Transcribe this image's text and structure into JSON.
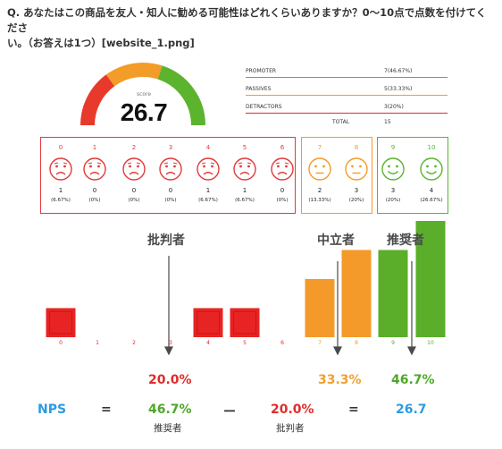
{
  "question": {
    "line1": "Q. あなたはこの商品を友人・知人に勧める可能性はどれくらいありますか？0〜10点で点数を付けてくださ",
    "line2": "い。（お答えは1つ）[website_1.png]"
  },
  "gauge": {
    "label": "score",
    "value": "26.7",
    "colors": {
      "red": "#e83a2c",
      "orange": "#f39c27",
      "green": "#5cb32e",
      "track": "#dddddd"
    }
  },
  "summary": {
    "rows": [
      {
        "label": "PROMOTER",
        "value": "7(46.67%)",
        "line_color": "#5cb32e"
      },
      {
        "label": "PASSIVES",
        "value": "5(33.33%)",
        "line_color": "#f39c27"
      },
      {
        "label": "DETRACTORS",
        "value": "3(20%)",
        "line_color": "#e02b2b"
      }
    ],
    "total_label": "TOTAL",
    "total_value": "15"
  },
  "scale": {
    "groups": [
      {
        "name": "detractor",
        "color": "#e23a3a"
      },
      {
        "name": "passive",
        "color": "#f39c27"
      },
      {
        "name": "promoter",
        "color": "#5cb32e"
      }
    ],
    "items": [
      {
        "n": "0",
        "count": "1",
        "pct": "(6.67%)",
        "group": 0
      },
      {
        "n": "1",
        "count": "0",
        "pct": "(0%)",
        "group": 0
      },
      {
        "n": "2",
        "count": "0",
        "pct": "(0%)",
        "group": 0
      },
      {
        "n": "3",
        "count": "0",
        "pct": "(0%)",
        "group": 0
      },
      {
        "n": "4",
        "count": "1",
        "pct": "(6.67%)",
        "group": 0
      },
      {
        "n": "5",
        "count": "1",
        "pct": "(6.67%)",
        "group": 0
      },
      {
        "n": "6",
        "count": "0",
        "pct": "(0%)",
        "group": 0
      },
      {
        "n": "7",
        "count": "2",
        "pct": "(13.33%)",
        "group": 1
      },
      {
        "n": "8",
        "count": "3",
        "pct": "(20%)",
        "group": 1
      },
      {
        "n": "9",
        "count": "3",
        "pct": "(20%)",
        "group": 2
      },
      {
        "n": "10",
        "count": "4",
        "pct": "(26.67%)",
        "group": 2
      }
    ]
  },
  "chart_data": {
    "type": "bar",
    "categories": [
      "0",
      "1",
      "2",
      "3",
      "4",
      "5",
      "6",
      "7",
      "8",
      "9",
      "10"
    ],
    "values": [
      1,
      0,
      0,
      0,
      1,
      1,
      0,
      2,
      3,
      3,
      4
    ],
    "colors": [
      "#e82323",
      "#e82323",
      "#e82323",
      "#e82323",
      "#e82323",
      "#e82323",
      "#e82323",
      "#f39a2a",
      "#f39a2a",
      "#5aae2a",
      "#5aae2a"
    ],
    "group_labels": [
      {
        "text": "批判者"
      },
      {
        "text": "中立者"
      },
      {
        "text": "推奨者"
      }
    ],
    "ylim": [
      0,
      4
    ]
  },
  "formula": {
    "nps_label": "NPS",
    "eq1": "=",
    "promoter_pct": "46.7%",
    "promoter_caption": "推奨者",
    "minus": "ー",
    "detractor_pct": "20.0%",
    "detractor_caption": "批判者",
    "eq2": "=",
    "result": "26.7",
    "top_detractor": "20.0%",
    "top_passive": "33.3%",
    "top_promoter": "46.7%",
    "colors": {
      "blue": "#2b9be0",
      "red": "#e02b2b",
      "orange": "#f0a030",
      "green": "#4ea82a"
    }
  }
}
